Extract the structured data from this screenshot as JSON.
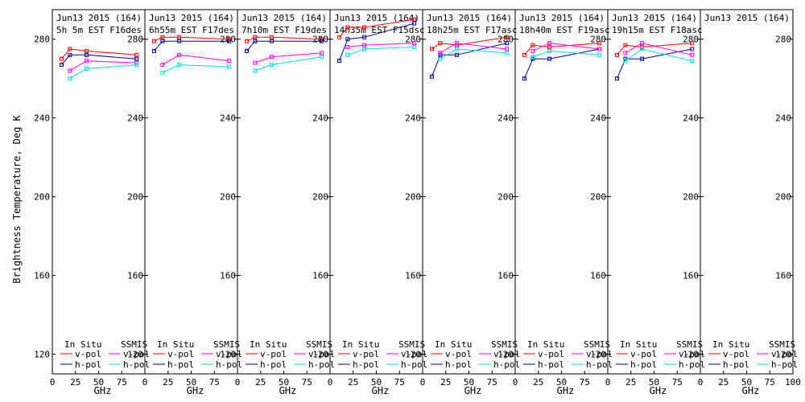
{
  "chart_data": {
    "type": "line",
    "ylabel": "Brightness Temperature, Deg K",
    "xlabel": "GHz",
    "ylim": [
      110,
      295
    ],
    "xlim": [
      0,
      100
    ],
    "yticks": [
      120,
      160,
      200,
      240,
      280
    ],
    "xticks": [
      0,
      25,
      50,
      75,
      100
    ],
    "xtick_labels": [
      "0",
      "25",
      "50",
      "75",
      "100"
    ],
    "colors": {
      "insitu_v": "#ff0000",
      "insitu_h": "#0000a0",
      "ssmis_v": "#ff00ff",
      "ssmis_h": "#00e0e0"
    },
    "legend": {
      "insitu_header": "In Situ",
      "ssmis_header": "SSMIS",
      "vpol": "v-pol",
      "hpol": "h-pol"
    },
    "panels": [
      {
        "date": "Jun13 2015 (164)",
        "time": "5h 5m  EST F16des",
        "series": [
          {
            "name": "In Situ v-pol",
            "x": [
              10,
              19,
              37,
              91
            ],
            "y": [
              270,
              275,
              274,
              272
            ]
          },
          {
            "name": "In Situ h-pol",
            "x": [
              10,
              19,
              37,
              91
            ],
            "y": [
              267,
              272,
              272,
              270
            ]
          },
          {
            "name": "SSMIS v-pol",
            "x": [
              19,
              37,
              91
            ],
            "y": [
              264,
              269,
              268
            ]
          },
          {
            "name": "SSMIS h-pol",
            "x": [
              19,
              37,
              91
            ],
            "y": [
              260,
              265,
              267
            ]
          }
        ]
      },
      {
        "date": "Jun13 2015 (164)",
        "time": "6h55m  EST F17des",
        "series": [
          {
            "name": "In Situ v-pol",
            "x": [
              10,
              19,
              37,
              91
            ],
            "y": [
              279,
              281,
              281,
              280
            ]
          },
          {
            "name": "In Situ h-pol",
            "x": [
              10,
              19,
              37,
              91
            ],
            "y": [
              274,
              279,
              279,
              279
            ]
          },
          {
            "name": "SSMIS v-pol",
            "x": [
              19,
              37,
              91
            ],
            "y": [
              267,
              272,
              269
            ]
          },
          {
            "name": "SSMIS h-pol",
            "x": [
              19,
              37,
              91
            ],
            "y": [
              263,
              267,
              266
            ]
          }
        ]
      },
      {
        "date": "Jun13 2015 (164)",
        "time": "7h10m  EST F19des",
        "series": [
          {
            "name": "In Situ v-pol",
            "x": [
              10,
              19,
              37,
              91
            ],
            "y": [
              279,
              281,
              281,
              280
            ]
          },
          {
            "name": "In Situ h-pol",
            "x": [
              10,
              19,
              37,
              91
            ],
            "y": [
              274,
              279,
              279,
              279
            ]
          },
          {
            "name": "SSMIS v-pol",
            "x": [
              19,
              37,
              91
            ],
            "y": [
              268,
              271,
              273
            ]
          },
          {
            "name": "SSMIS h-pol",
            "x": [
              19,
              37,
              91
            ],
            "y": [
              264,
              267,
              271
            ]
          }
        ]
      },
      {
        "date": "Jun13 2015 (164)",
        "time": "14h35m  EST F15dsc",
        "series": [
          {
            "name": "In Situ v-pol",
            "x": [
              10,
              19,
              37,
              91
            ],
            "y": [
              281,
              286,
              286,
              290
            ]
          },
          {
            "name": "In Situ h-pol",
            "x": [
              10,
              19,
              37,
              91
            ],
            "y": [
              269,
              280,
              281,
              288
            ]
          },
          {
            "name": "SSMIS v-pol",
            "x": [
              19,
              37,
              91
            ],
            "y": [
              276,
              277,
              278
            ]
          },
          {
            "name": "SSMIS h-pol",
            "x": [
              19,
              37,
              91
            ],
            "y": [
              272,
              275,
              276
            ]
          }
        ]
      },
      {
        "date": "Jun13 2015 (164)",
        "time": "18h25m  EST F17asc",
        "series": [
          {
            "name": "In Situ v-pol",
            "x": [
              10,
              19,
              37,
              91
            ],
            "y": [
              275,
              278,
              277,
              281
            ]
          },
          {
            "name": "In Situ h-pol",
            "x": [
              10,
              19,
              37,
              91
            ],
            "y": [
              261,
              272,
              272,
              278
            ]
          },
          {
            "name": "SSMIS v-pol",
            "x": [
              19,
              37,
              91
            ],
            "y": [
              273,
              278,
              275
            ]
          },
          {
            "name": "SSMIS h-pol",
            "x": [
              19,
              37,
              91
            ],
            "y": [
              270,
              275,
              273
            ]
          }
        ]
      },
      {
        "date": "Jun13 2015 (164)",
        "time": "18h40m  EST F19asc",
        "series": [
          {
            "name": "In Situ v-pol",
            "x": [
              10,
              19,
              37,
              91
            ],
            "y": [
              272,
              277,
              276,
              278
            ]
          },
          {
            "name": "In Situ h-pol",
            "x": [
              10,
              19,
              37,
              91
            ],
            "y": [
              260,
              270,
              270,
              275
            ]
          },
          {
            "name": "SSMIS v-pol",
            "x": [
              19,
              37,
              91
            ],
            "y": [
              274,
              278,
              275
            ]
          },
          {
            "name": "SSMIS h-pol",
            "x": [
              19,
              37,
              91
            ],
            "y": [
              271,
              274,
              272
            ]
          }
        ]
      },
      {
        "date": "Jun13 2015 (164)",
        "time": "19h15m  EST F18asc",
        "series": [
          {
            "name": "In Situ v-pol",
            "x": [
              10,
              19,
              37,
              91
            ],
            "y": [
              272,
              277,
              276,
              278
            ]
          },
          {
            "name": "In Situ h-pol",
            "x": [
              10,
              19,
              37,
              91
            ],
            "y": [
              260,
              270,
              270,
              275
            ]
          },
          {
            "name": "SSMIS v-pol",
            "x": [
              19,
              37,
              91
            ],
            "y": [
              273,
              278,
              272
            ]
          },
          {
            "name": "SSMIS h-pol",
            "x": [
              19,
              37,
              91
            ],
            "y": [
              269,
              275,
              269
            ]
          }
        ]
      },
      {
        "date": "Jun13 2015 (164)",
        "time": "",
        "series": []
      }
    ]
  }
}
